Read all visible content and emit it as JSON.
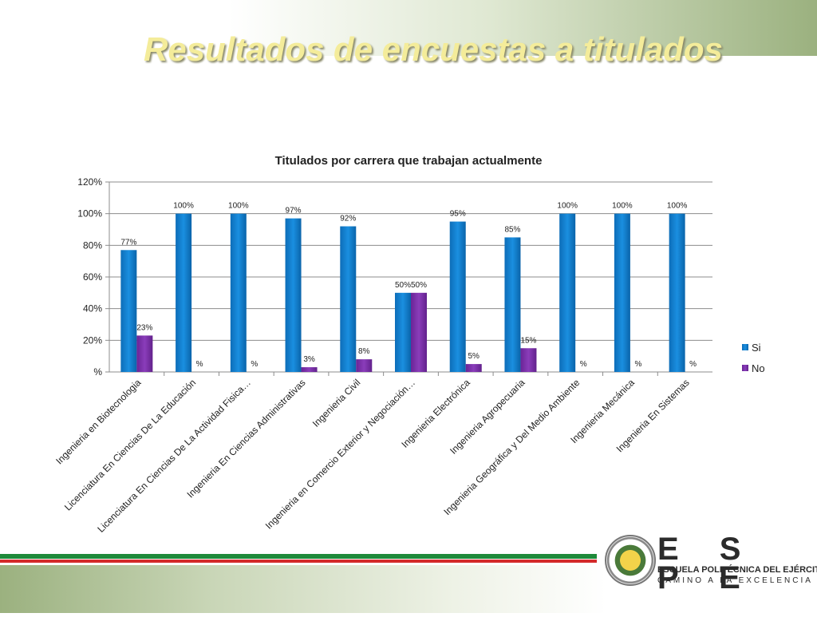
{
  "slide": {
    "title": "Resultados de encuestas a titulados",
    "logo_text": "E S P E",
    "logo_line1": "ESCUELA POLITÉCNICA DEL EJÉRCITO",
    "logo_line2": "CAMINO A LA EXCELENCIA"
  },
  "colors": {
    "si": "#0a7fd0",
    "no": "#7a2fa8",
    "title_text": "#f4ec9a",
    "green_stripe": "#1e8a3a",
    "red_stripe": "#d42a2a"
  },
  "chart_data": {
    "type": "bar",
    "title": "Titulados por carrera que trabajan actualmente",
    "xlabel": "",
    "ylabel": "",
    "ylim": [
      0,
      120
    ],
    "yticks": [
      "%",
      "20%",
      "40%",
      "60%",
      "80%",
      "100%",
      "120%"
    ],
    "grid": true,
    "legend_position": "right",
    "categories": [
      "Ingenieria en Biotecnologia",
      "Licenciatura En Ciencias De La Educación",
      "Licenciatura En Ciencias De La Actividad Fisica…",
      "Ingenieria En Ciencias Administrativas",
      "Ingenieria Civil",
      "Ingenieria en Comercio Exterior y Negociación…",
      "Ingenieria Electrónica",
      "Ingenieria Agropecuaria",
      "Ingenieria Geográfica y Del Medio Ambiente",
      "Ingenieria Mecánica",
      "Ingenieria En Sistemas"
    ],
    "series": [
      {
        "name": "Si",
        "values": [
          77,
          100,
          100,
          97,
          92,
          50,
          95,
          85,
          100,
          100,
          100
        ],
        "labels": [
          "77%",
          "100%",
          "100%",
          "97%",
          "92%",
          "50%",
          "95%",
          "85%",
          "100%",
          "100%",
          "100%"
        ]
      },
      {
        "name": "No",
        "values": [
          23,
          0,
          0,
          3,
          8,
          50,
          5,
          15,
          0,
          0,
          0
        ],
        "labels": [
          "23%",
          "%",
          "%",
          "3%",
          "8%",
          "50%",
          "5%",
          "15%",
          "%",
          "%",
          "%"
        ]
      }
    ]
  }
}
